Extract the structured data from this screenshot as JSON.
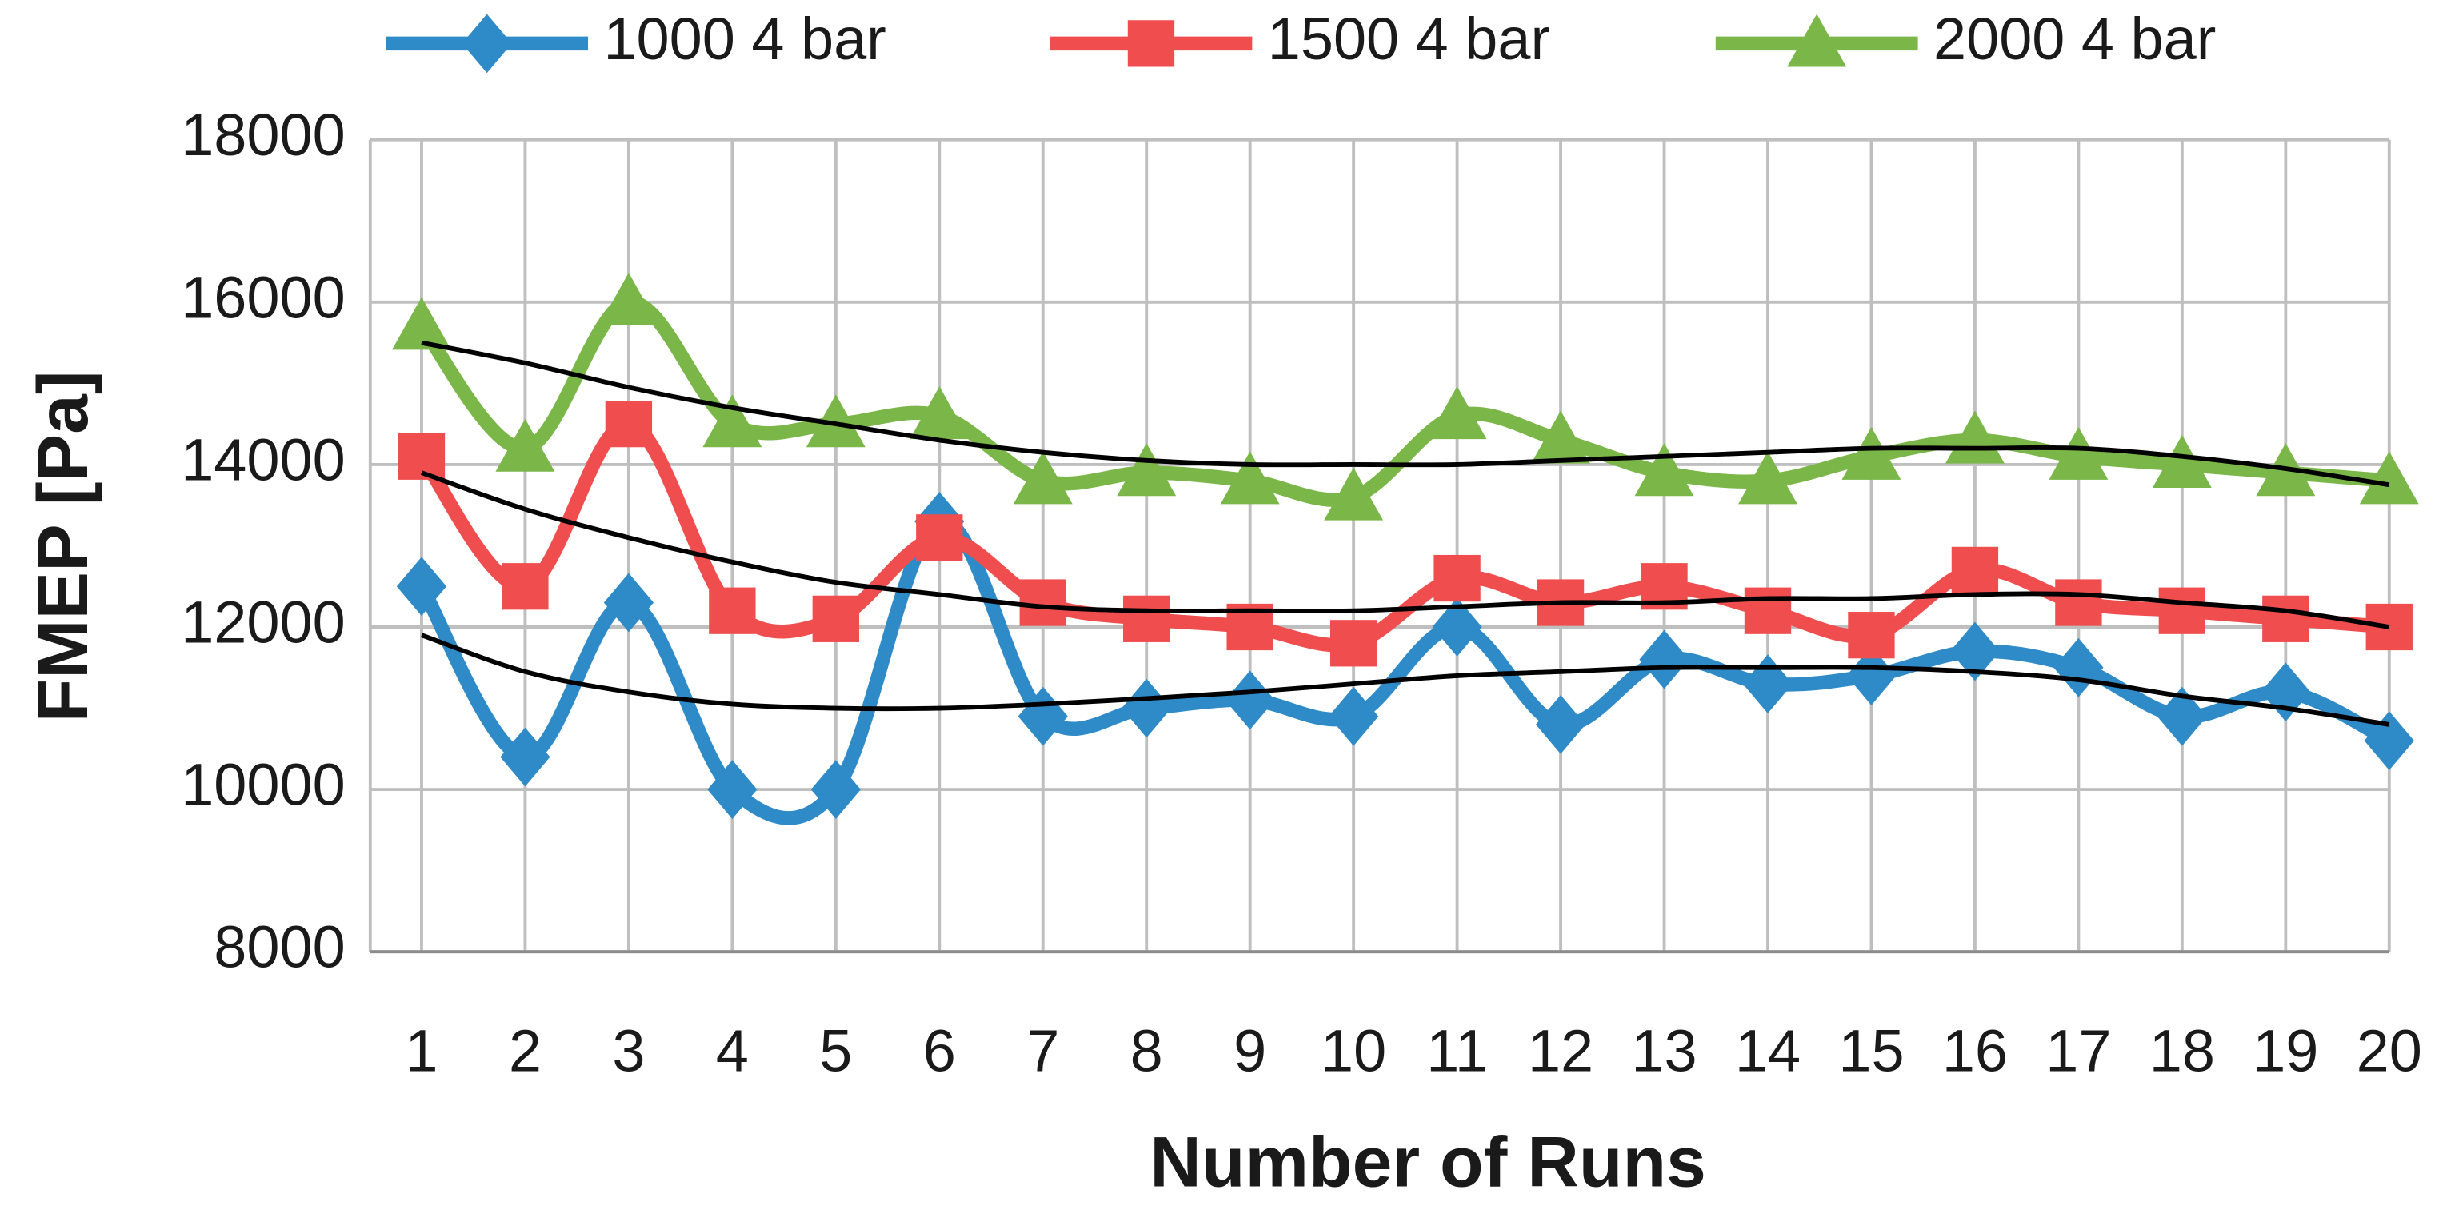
{
  "chart_data": {
    "type": "line",
    "x_label": "Number of Runs",
    "y_label": "FMEP [Pa]",
    "categories": [
      "1",
      "2",
      "3",
      "4",
      "5",
      "6",
      "7",
      "8",
      "9",
      "10",
      "11",
      "12",
      "13",
      "14",
      "15",
      "16",
      "17",
      "18",
      "19",
      "20"
    ],
    "ylim": [
      8000,
      18000
    ],
    "yticks": [
      8000,
      10000,
      12000,
      14000,
      16000,
      18000
    ],
    "grid": true,
    "legend": "top",
    "trend_color": "#000000",
    "series": [
      {
        "name": "1000 4 bar",
        "color": "#2e8bc8",
        "marker": "diamond",
        "values": [
          12500,
          10400,
          12300,
          10000,
          10000,
          13300,
          10900,
          11000,
          11100,
          10900,
          12000,
          10800,
          11600,
          11300,
          11400,
          11700,
          11500,
          10900,
          11200,
          10600
        ],
        "trend": [
          11900,
          11450,
          11200,
          11050,
          11000,
          11000,
          11050,
          11120,
          11200,
          11300,
          11400,
          11450,
          11500,
          11500,
          11500,
          11450,
          11350,
          11150,
          11000,
          10800
        ]
      },
      {
        "name": "1500 4 bar",
        "color": "#f04e4e",
        "marker": "square",
        "values": [
          14100,
          12500,
          14500,
          12200,
          12100,
          13100,
          12300,
          12100,
          12000,
          11800,
          12600,
          12300,
          12500,
          12200,
          11900,
          12700,
          12300,
          12200,
          12100,
          12000
        ],
        "trend": [
          13900,
          13450,
          13100,
          12800,
          12550,
          12400,
          12250,
          12200,
          12200,
          12200,
          12250,
          12300,
          12300,
          12350,
          12350,
          12400,
          12400,
          12300,
          12200,
          12000
        ]
      },
      {
        "name": "2000 4 bar",
        "color": "#7ab648",
        "marker": "triangle",
        "values": [
          15700,
          14200,
          16000,
          14500,
          14500,
          14600,
          13800,
          13900,
          13800,
          13600,
          14600,
          14300,
          13900,
          13800,
          14100,
          14300,
          14100,
          14000,
          13900,
          13800
        ],
        "trend": [
          15500,
          15250,
          14950,
          14700,
          14500,
          14300,
          14150,
          14050,
          14000,
          14000,
          14000,
          14050,
          14100,
          14150,
          14200,
          14200,
          14200,
          14100,
          13950,
          13750
        ]
      }
    ]
  }
}
